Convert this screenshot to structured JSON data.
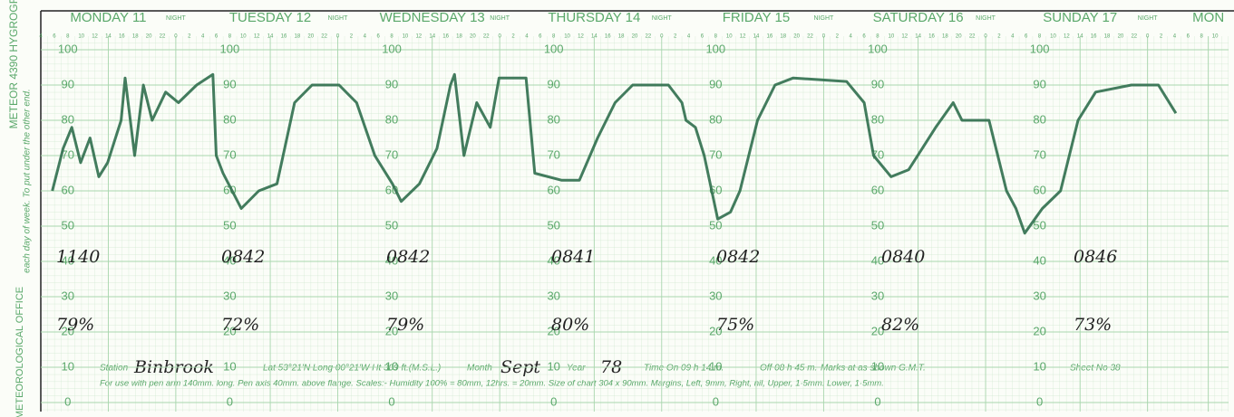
{
  "chart_data": {
    "type": "line",
    "x": [
      5.7,
      7.3,
      8.6,
      9.9,
      11.3,
      12.6,
      13.9,
      15.9,
      16.5,
      17.9,
      19.2,
      20.5,
      22.5,
      24.4,
      27.1,
      29.5,
      30.0,
      31.0,
      33.7,
      36.3,
      39.0,
      41.6,
      44.2,
      48.2,
      50.8,
      53.5,
      56.1,
      57.4,
      60.1,
      62.7,
      64.7,
      65.3,
      66.7,
      68.6,
      70.6,
      71.9,
      75.9,
      77.2,
      81.2,
      83.8,
      86.5,
      89.1,
      91.7,
      97.0,
      99.0,
      99.6,
      101.0,
      102.3,
      104.3,
      106.2,
      107.6,
      110.2,
      112.8,
      115.5,
      123.4,
      126.0,
      127.4,
      130.0,
      132.6,
      136.6,
      139.2,
      140.5,
      141.9,
      144.5,
      147.1,
      148.5,
      149.8,
      152.4,
      155.1,
      157.7,
      160.3,
      165.6,
      169.6,
      172.2
    ],
    "values": [
      60,
      72,
      78,
      68,
      75,
      64,
      68,
      80,
      92,
      70,
      90,
      80,
      88,
      85,
      90,
      93,
      70,
      65,
      55,
      60,
      62,
      85,
      90,
      90,
      85,
      70,
      62,
      57,
      62,
      72,
      90,
      93,
      70,
      85,
      78,
      92,
      92,
      65,
      63,
      63,
      75,
      85,
      90,
      90,
      85,
      80,
      78,
      70,
      52,
      54,
      60,
      80,
      90,
      92,
      91,
      85,
      70,
      64,
      66,
      78,
      85,
      80,
      80,
      80,
      60,
      55,
      48,
      55,
      60,
      80,
      88,
      90,
      90,
      82
    ],
    "color": "#2f6e4c",
    "xlim": [
      4,
      180
    ],
    "xticks": [
      {
        "value": 14,
        "label": "MONDAY 11"
      },
      {
        "value": 24,
        "label": "NIGHT"
      },
      {
        "value": 38,
        "label": "TUESDAY 12"
      },
      {
        "value": 48,
        "label": "NIGHT"
      },
      {
        "value": 62,
        "label": "WEDNESDAY 13"
      },
      {
        "value": 72,
        "label": "NIGHT"
      },
      {
        "value": 86,
        "label": "THURSDAY 14"
      },
      {
        "value": 96,
        "label": "NIGHT"
      },
      {
        "value": 110,
        "label": "FRIDAY 15"
      },
      {
        "value": 120,
        "label": "NIGHT"
      },
      {
        "value": 134,
        "label": "SATURDAY 16"
      },
      {
        "value": 144,
        "label": "NIGHT"
      },
      {
        "value": 158,
        "label": "SUNDAY 17"
      },
      {
        "value": 168,
        "label": "NIGHT"
      },
      {
        "value": 177,
        "label": "MON"
      }
    ],
    "hour_labels": [
      4,
      6,
      8,
      10,
      12,
      14,
      16,
      18,
      20,
      22,
      0,
      2
    ],
    "ylim": [
      0,
      100
    ],
    "yticks": [
      0,
      10,
      20,
      30,
      40,
      50,
      60,
      70,
      80,
      90,
      100
    ],
    "grid": true,
    "readings": {
      "times": [
        "1140",
        "0842",
        "0842",
        "0841",
        "0842",
        "0840",
        "0846"
      ],
      "values": [
        79,
        72,
        79,
        80,
        75,
        82,
        73
      ],
      "value_labels": [
        "79%",
        "72%",
        "79%",
        "80%",
        "75%",
        "82%",
        "73%"
      ]
    }
  },
  "form": {
    "office": "METEOROLOGICAL OFFICE",
    "code": "METEOR 4390 HYGROGRAM",
    "side_note": "each day of week. To put under the other end.",
    "line1": [
      "Station",
      "Binbrook",
      "Lat 53°21'N Long 00°21'W Ht 309 ft.(M.S.L.)",
      "Month",
      "Sept",
      "Year",
      "78",
      "Time On 09 h 14 m.",
      "Off 08 h 45 m.",
      "Marks at as shown G.M.T.",
      "Sheet No 38"
    ],
    "line2": "For use with pen arm 140mm. long.   Pen axis 40mm. above flange.   Scales:- Humidity 100% = 80mm,   12hrs. = 20mm.   Size of chart 304 x 90mm.   Margins, Left, 9mm, Right, nil, Upper, 1·5mm. Lower, 1·5mm."
  }
}
